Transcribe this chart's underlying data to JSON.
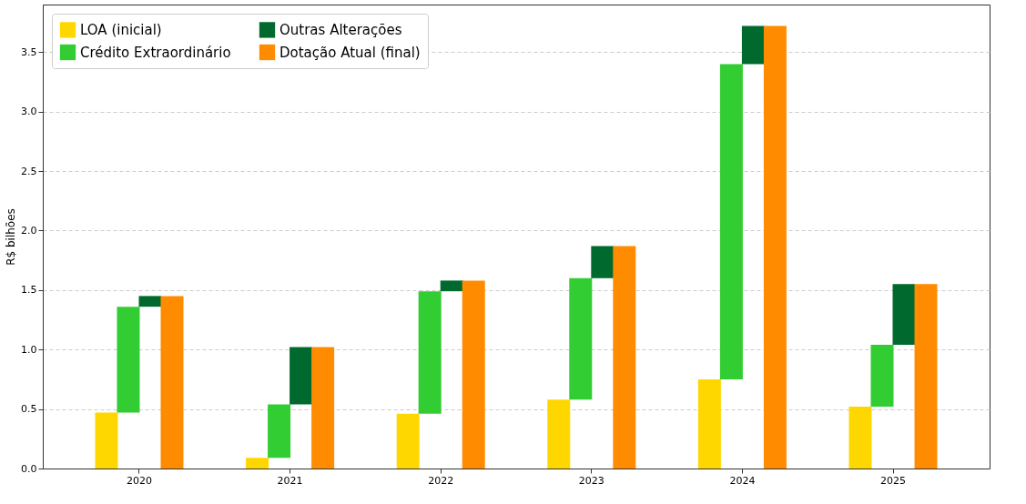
{
  "chart_data": {
    "type": "bar",
    "ylabel": "R$ bilhões",
    "categories": [
      "2020",
      "2021",
      "2022",
      "2023",
      "2024",
      "2025"
    ],
    "series": [
      {
        "name": "LOA (inicial)",
        "color": "#ffd700",
        "values": [
          0.47,
          0.09,
          0.46,
          0.58,
          0.75,
          0.52
        ]
      },
      {
        "name": "Crédito Extraordinário",
        "color": "#32cd32",
        "base": [
          0.47,
          0.09,
          0.46,
          0.58,
          0.75,
          0.52
        ],
        "values": [
          0.89,
          0.45,
          1.03,
          1.02,
          2.65,
          0.52
        ]
      },
      {
        "name": "Outras Alterações",
        "color": "#006a2e",
        "base": [
          1.36,
          0.54,
          1.49,
          1.6,
          3.4,
          1.04
        ],
        "values": [
          0.09,
          0.48,
          0.09,
          0.27,
          0.32,
          0.51
        ]
      },
      {
        "name": "Dotação Atual (final)",
        "color": "#ff8c00",
        "values": [
          1.45,
          1.02,
          1.58,
          1.87,
          3.72,
          1.55
        ]
      }
    ],
    "ylim": [
      0,
      3.9
    ],
    "yticks": [
      {
        "value": 0,
        "label": "0.0"
      },
      0.5,
      {
        "value": 1,
        "label": "1.0"
      },
      1.5,
      {
        "value": 2,
        "label": "2.0"
      },
      2.5,
      {
        "value": 3,
        "label": "3.0"
      },
      3.5
    ],
    "grid": "y",
    "legend": "top left"
  }
}
